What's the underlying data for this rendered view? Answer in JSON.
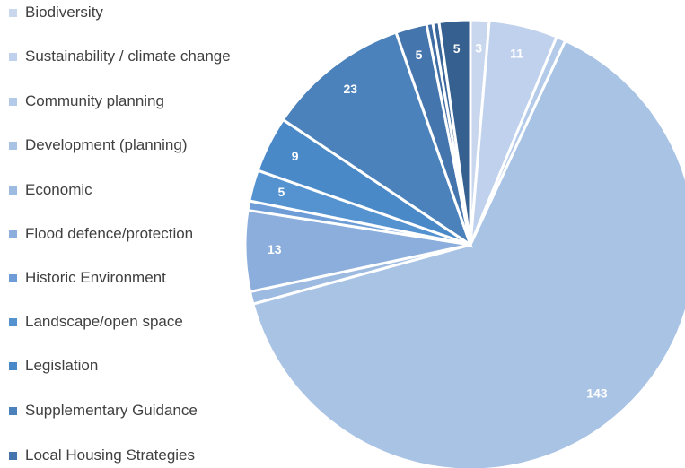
{
  "chart_data": {
    "type": "pie",
    "categories": [
      "Biodiversity",
      "Sustainability / climate change",
      "Community planning",
      "Development (planning)",
      "Economic",
      "Flood defence/protection",
      "Historic Environment",
      "Landscape/open space",
      "Legislation",
      "Supplementary Guidance",
      "Local Housing Strategies",
      null,
      null,
      null
    ],
    "values": [
      3,
      11,
      1.5,
      143,
      2,
      13,
      1.5,
      5,
      9,
      23,
      5,
      1,
      1,
      5
    ],
    "colors": [
      "#c9d7ee",
      "#bfd1ec",
      "#b4cae9",
      "#a9c3e5",
      "#9dbae1",
      "#8caedc",
      "#6d9cd6",
      "#5592d0",
      "#4a89c8",
      "#4b82bb",
      "#4575ad",
      "#3f6da3",
      "#3a6699",
      "#35608f"
    ]
  }
}
